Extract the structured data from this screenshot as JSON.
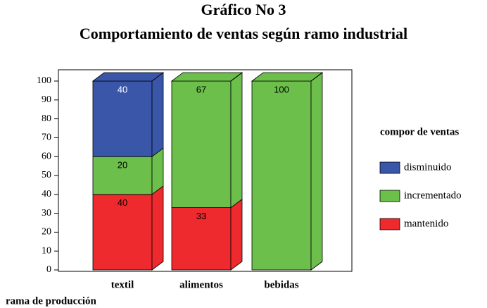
{
  "chart_data": {
    "type": "bar",
    "stacked": true,
    "title": "Gráfico No 3",
    "subtitle": "Comportamiento de ventas según ramo industrial",
    "x_label": "rama de producción",
    "legend_title": "compor de ventas",
    "categories": [
      "textil",
      "alimentos",
      "bebidas"
    ],
    "series": [
      {
        "name": "mantenido",
        "color": "#ee2a2e",
        "values": [
          40,
          33,
          0
        ]
      },
      {
        "name": "incrementado",
        "color": "#6cbf4a",
        "values": [
          20,
          67,
          100
        ]
      },
      {
        "name": "disminuido",
        "color": "#3a56a8",
        "values": [
          40,
          0,
          0
        ]
      }
    ],
    "ylim": [
      0,
      100
    ],
    "yticks": [
      0,
      10,
      20,
      30,
      40,
      50,
      60,
      70,
      80,
      90,
      100
    ],
    "legend": "right"
  }
}
